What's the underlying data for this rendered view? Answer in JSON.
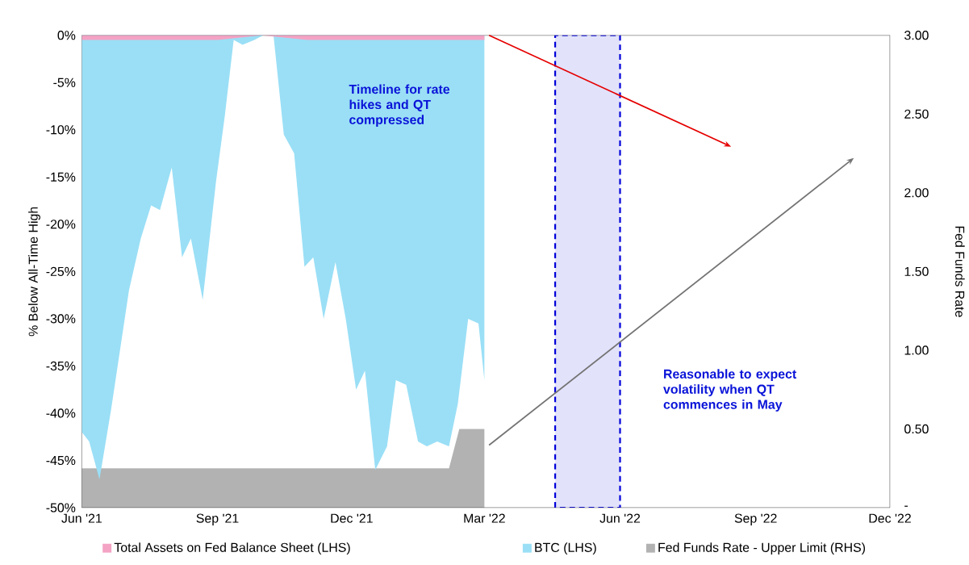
{
  "chart_data": {
    "type": "area",
    "ylabel": "% Below All-Time High",
    "y2label": "Fed Funds Rate",
    "xlim": [
      "2021-06-01",
      "2022-12-01"
    ],
    "xticks": [
      {
        "value": "2021-06-01",
        "label": "Jun '21"
      },
      {
        "value": "2021-09-01",
        "label": "Sep '21"
      },
      {
        "value": "2021-12-01",
        "label": "Dec '21"
      },
      {
        "value": "2022-03-01",
        "label": "Mar '22"
      },
      {
        "value": "2022-06-01",
        "label": "Jun '22"
      },
      {
        "value": "2022-09-01",
        "label": "Sep '22"
      },
      {
        "value": "2022-12-01",
        "label": "Dec '22"
      }
    ],
    "ylim": [
      -50,
      0
    ],
    "yticks": [
      {
        "value": 0,
        "label": "0%"
      },
      {
        "value": -5,
        "label": "-5%"
      },
      {
        "value": -10,
        "label": "-10%"
      },
      {
        "value": -15,
        "label": "-15%"
      },
      {
        "value": -20,
        "label": "-20%"
      },
      {
        "value": -25,
        "label": "-25%"
      },
      {
        "value": -30,
        "label": "-30%"
      },
      {
        "value": -35,
        "label": "-35%"
      },
      {
        "value": -40,
        "label": "-40%"
      },
      {
        "value": -45,
        "label": "-45%"
      },
      {
        "value": -50,
        "label": "-50%"
      }
    ],
    "y2lim": [
      0,
      3
    ],
    "y2ticks": [
      {
        "value": 0,
        "label": "-"
      },
      {
        "value": 0.5,
        "label": "0.50"
      },
      {
        "value": 1,
        "label": "1.00"
      },
      {
        "value": 1.5,
        "label": "1.50"
      },
      {
        "value": 2,
        "label": "2.00"
      },
      {
        "value": 2.5,
        "label": "2.50"
      },
      {
        "value": 3,
        "label": "3.00"
      }
    ],
    "legend": "bottom",
    "series": [
      {
        "name": "Total Assets on Fed Balance Sheet (LHS)",
        "color": "#f4a3c4",
        "x": [
          "2021-06-01",
          "2021-07-01",
          "2021-08-01",
          "2021-09-01",
          "2021-10-01",
          "2021-11-01",
          "2021-12-01",
          "2022-01-01",
          "2022-02-01",
          "2022-03-01"
        ],
        "values": [
          -0.5,
          -0.5,
          -0.5,
          -0.5,
          0,
          -0.5,
          -0.5,
          -0.5,
          -0.5,
          -0.5
        ]
      },
      {
        "name": "BTC (LHS)",
        "color": "#9adff6",
        "x": [
          "2021-06-01",
          "2021-06-06",
          "2021-06-13",
          "2021-06-21",
          "2021-07-03",
          "2021-07-11",
          "2021-07-18",
          "2021-07-24",
          "2021-08-01",
          "2021-08-08",
          "2021-08-14",
          "2021-08-22",
          "2021-08-31",
          "2021-09-06",
          "2021-09-12",
          "2021-09-18",
          "2021-09-26",
          "2021-10-02",
          "2021-10-09",
          "2021-10-16",
          "2021-10-23",
          "2021-10-30",
          "2021-11-05",
          "2021-11-12",
          "2021-11-20",
          "2021-11-27",
          "2021-12-04",
          "2021-12-10",
          "2021-12-17",
          "2021-12-25",
          "2021-12-31",
          "2022-01-07",
          "2022-01-15",
          "2022-01-21",
          "2022-01-28",
          "2022-02-05",
          "2022-02-11",
          "2022-02-18",
          "2022-02-25",
          "2022-03-01"
        ],
        "values": [
          -42,
          -43,
          -47,
          -39.5,
          -27,
          -21.5,
          -18,
          -18.5,
          -14,
          -23.5,
          -21.5,
          -28,
          -15.5,
          -8.5,
          -0.5,
          -1,
          -0.5,
          0,
          0,
          -10.5,
          -12.5,
          -24.5,
          -23.5,
          -30,
          -24,
          -30,
          -37.5,
          -35.5,
          -46,
          -43.5,
          -36.5,
          -37,
          -43,
          -43.5,
          -43,
          -43.5,
          -39,
          -30,
          -30.5,
          -36.5
        ]
      },
      {
        "name": "Fed Funds Rate - Upper Limit (RHS)",
        "color": "#b2b2b2",
        "axis": "y2",
        "x": [
          "2021-06-01",
          "2022-02-05",
          "2022-02-12",
          "2022-03-01"
        ],
        "values": [
          0.25,
          0.25,
          0.5,
          0.5
        ]
      }
    ],
    "bands": [
      {
        "axis": "x",
        "from": "2022-04-18",
        "to": "2022-06-01",
        "color": "#e2e2fb"
      }
    ],
    "annotations": [
      "Timeline for rate hikes and QT compressed",
      "Reasonable to expect volatility when QT commences in May"
    ]
  }
}
